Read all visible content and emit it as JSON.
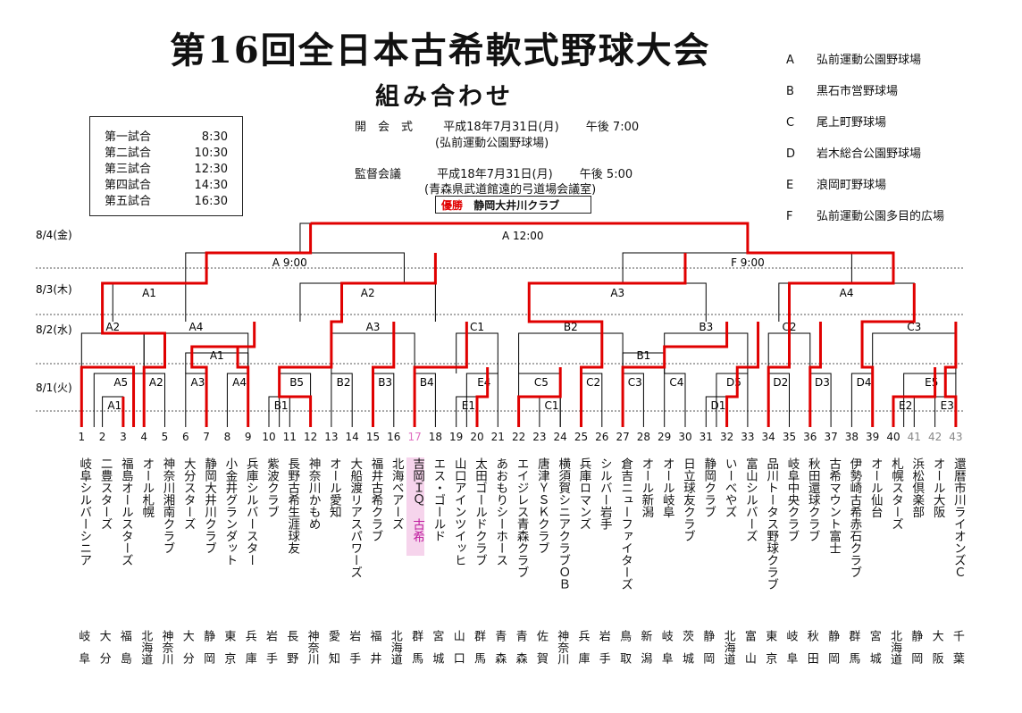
{
  "title": "第16回全日本古希軟式野球大会",
  "subtitle": "組み合わせ",
  "schedule": [
    {
      "label": "第一試合",
      "time": "8:30"
    },
    {
      "label": "第二試合",
      "time": "10:30"
    },
    {
      "label": "第三試合",
      "time": "12:30"
    },
    {
      "label": "第四試合",
      "time": "14:30"
    },
    {
      "label": "第五試合",
      "time": "16:30"
    }
  ],
  "opening": {
    "label": "開　会　式",
    "date": "平成18年7月31日(月)",
    "time": "午後 7:00",
    "place": "(弘前運動公園野球場)"
  },
  "managers": {
    "label": "監督会議",
    "date": "平成18年7月31日(月)",
    "time": "午後 5:00",
    "place": "(青森県武道館遠的弓道場会議室)"
  },
  "winner": {
    "label": "優勝",
    "team": "静岡大井川クラブ"
  },
  "venues": [
    {
      "key": "A",
      "name": "弘前運動公園野球場"
    },
    {
      "key": "B",
      "name": "黒石市営野球場"
    },
    {
      "key": "C",
      "name": "尾上町野球場"
    },
    {
      "key": "D",
      "name": "岩木総合公園野球場"
    },
    {
      "key": "E",
      "name": "浪岡町野球場"
    },
    {
      "key": "F",
      "name": "弘前運動公園多目的広場"
    }
  ],
  "dates": [
    "8/4(金)",
    "8/3(木)",
    "8/2(水)",
    "8/1(火)"
  ],
  "bracket_labels": {
    "final": "A 12:00",
    "semi_left": "A 9:00",
    "semi_right": "F 9:00",
    "r3": [
      "A1",
      "A2",
      "A3",
      "A4"
    ],
    "r2": [
      "A2",
      "A4",
      "A3",
      "C1",
      "B2",
      "B3",
      "C2",
      "C3"
    ],
    "r2b": [
      "A1",
      "B1"
    ],
    "r1": [
      "A5",
      "A1",
      "A2",
      "A3",
      "A4",
      "B1",
      "B5",
      "B2",
      "B3",
      "B4",
      "E1",
      "E4",
      "C5",
      "C1",
      "C2",
      "C3",
      "C4",
      "D1",
      "D5",
      "D2",
      "D3",
      "D4",
      "E2",
      "E5",
      "E3"
    ]
  },
  "highlight_note": "古希",
  "teams": [
    {
      "no": "1",
      "name": "岐阜シルバーシニア",
      "pref": "岐阜"
    },
    {
      "no": "2",
      "name": "二豊スターズ",
      "pref": "大分"
    },
    {
      "no": "3",
      "name": "福島オールスターズ",
      "pref": "福島"
    },
    {
      "no": "4",
      "name": "オール札幌",
      "pref": "北海道"
    },
    {
      "no": "5",
      "name": "神奈川湘南クラブ",
      "pref": "神奈川"
    },
    {
      "no": "6",
      "name": "大分スターズ",
      "pref": "大分"
    },
    {
      "no": "7",
      "name": "静岡大井川クラブ",
      "pref": "静岡"
    },
    {
      "no": "8",
      "name": "小金井グランダット",
      "pref": "東京"
    },
    {
      "no": "9",
      "name": "兵庫シルバースター",
      "pref": "兵庫"
    },
    {
      "no": "10",
      "name": "紫波クラブ",
      "pref": "岩手"
    },
    {
      "no": "11",
      "name": "長野古希生涯球友",
      "pref": "長野"
    },
    {
      "no": "12",
      "name": "神奈川かもめ",
      "pref": "神奈川"
    },
    {
      "no": "13",
      "name": "オール愛知",
      "pref": "愛知"
    },
    {
      "no": "14",
      "name": "大船渡リアスパワーズ",
      "pref": "岩手"
    },
    {
      "no": "15",
      "name": "福井古希クラブ",
      "pref": "福井"
    },
    {
      "no": "16",
      "name": "北海ベアーズ",
      "pref": "北海道"
    },
    {
      "no": "17",
      "name": "吉岡ＩＱ",
      "pref": "群馬"
    },
    {
      "no": "18",
      "name": "エス・ゴールド",
      "pref": "宮城"
    },
    {
      "no": "19",
      "name": "山口アインツイッヒ",
      "pref": "山口"
    },
    {
      "no": "20",
      "name": "太田ゴールドクラブ",
      "pref": "群馬"
    },
    {
      "no": "21",
      "name": "あおもりシーホース",
      "pref": "青森"
    },
    {
      "no": "22",
      "name": "エイジレス青森クラブ",
      "pref": "青森"
    },
    {
      "no": "23",
      "name": "唐津ＹＳＫクラブ",
      "pref": "佐賀"
    },
    {
      "no": "24",
      "name": "横須賀シニアクラブＯＢ",
      "pref": "神奈川"
    },
    {
      "no": "25",
      "name": "兵庫ロマンズ",
      "pref": "兵庫"
    },
    {
      "no": "26",
      "name": "シルバー岩手",
      "pref": "岩手"
    },
    {
      "no": "27",
      "name": "倉吉ニューファイターズ",
      "pref": "鳥取"
    },
    {
      "no": "28",
      "name": "オール新潟",
      "pref": "新潟"
    },
    {
      "no": "29",
      "name": "オール岐阜",
      "pref": "岐阜"
    },
    {
      "no": "30",
      "name": "日立球友クラブ",
      "pref": "茨城"
    },
    {
      "no": "31",
      "name": "静岡クラブ",
      "pref": "静岡"
    },
    {
      "no": "32",
      "name": "いーべやズ",
      "pref": "北海道"
    },
    {
      "no": "33",
      "name": "富山シルバーズ",
      "pref": "富山"
    },
    {
      "no": "34",
      "name": "品川トータス野球クラブ",
      "pref": "東京"
    },
    {
      "no": "35",
      "name": "岐阜中央クラブ",
      "pref": "岐阜"
    },
    {
      "no": "36",
      "name": "秋田還球クラブ",
      "pref": "秋田"
    },
    {
      "no": "37",
      "name": "古希マウント富士",
      "pref": "静岡"
    },
    {
      "no": "38",
      "name": "伊勢崎古希赤石クラブ",
      "pref": "群馬"
    },
    {
      "no": "39",
      "name": "オール仙台",
      "pref": "宮城"
    },
    {
      "no": "40",
      "name": "札幌スターズ",
      "pref": "北海道"
    },
    {
      "no": "41",
      "name": "浜松倶楽部",
      "pref": "静岡"
    },
    {
      "no": "42",
      "name": "オール大阪",
      "pref": "大阪"
    },
    {
      "no": "43",
      "name": "還暦市川ライオンズＣ",
      "pref": "千葉"
    }
  ]
}
